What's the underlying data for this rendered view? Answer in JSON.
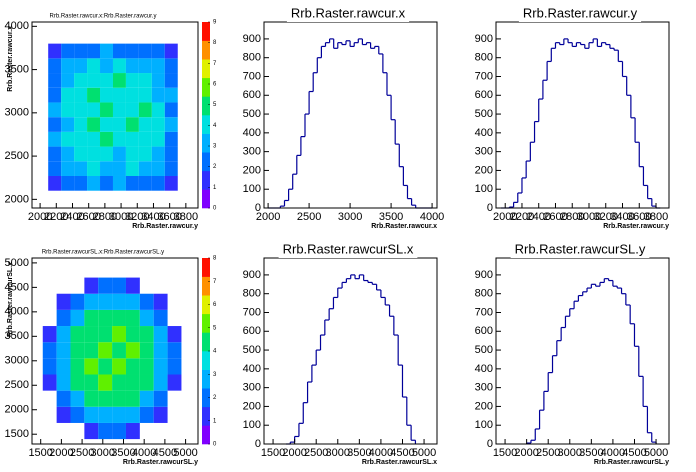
{
  "chart_data": [
    {
      "type": "heatmap",
      "title": "Rrb.Raster.rawcur.x:Rrb.Raster.rawcur.y",
      "xlabel": "Rrb.Raster.rawcur.y",
      "ylabel": "Rrb.Raster.rawcur.x",
      "xlim": [
        1900,
        3950
      ],
      "ylim": [
        1900,
        4050
      ],
      "xticks": [
        2000,
        2200,
        2400,
        2600,
        2800,
        3000,
        3200,
        3400,
        3600,
        3800
      ],
      "yticks": [
        2000,
        2500,
        3000,
        3500,
        4000
      ],
      "xbins": [
        2100,
        2260,
        2420,
        2580,
        2740,
        2900,
        3060,
        3220,
        3380,
        3540,
        3700
      ],
      "ybins": [
        2100,
        2270,
        2440,
        2610,
        2780,
        2950,
        3120,
        3290,
        3460,
        3630,
        3800
      ],
      "z": [
        [
          1,
          2,
          2,
          3,
          2,
          3,
          2,
          2,
          2,
          1
        ],
        [
          2,
          3,
          3,
          4,
          3,
          3,
          4,
          3,
          3,
          2
        ],
        [
          2,
          3,
          4,
          4,
          4,
          3,
          4,
          4,
          3,
          2
        ],
        [
          3,
          4,
          4,
          4,
          5,
          4,
          4,
          4,
          4,
          2
        ],
        [
          2,
          3,
          4,
          5,
          4,
          4,
          5,
          4,
          4,
          3
        ],
        [
          3,
          4,
          4,
          4,
          5,
          4,
          4,
          5,
          4,
          2
        ],
        [
          2,
          4,
          4,
          5,
          4,
          4,
          4,
          4,
          3,
          3
        ],
        [
          2,
          3,
          4,
          4,
          4,
          5,
          4,
          4,
          3,
          2
        ],
        [
          2,
          3,
          3,
          4,
          3,
          4,
          3,
          3,
          3,
          2
        ],
        [
          1,
          2,
          2,
          2,
          3,
          2,
          2,
          2,
          2,
          1
        ]
      ],
      "zlim": [
        0,
        9
      ],
      "zticks": [
        0,
        1,
        2,
        3,
        4,
        5,
        6,
        7,
        8,
        9
      ],
      "palette": [
        "#8000ff",
        "#3030ff",
        "#0070ff",
        "#00b0ff",
        "#00e0e0",
        "#00e070",
        "#60f000",
        "#e0f000",
        "#ff9000",
        "#ff1000"
      ]
    },
    {
      "type": "histogram",
      "title": "Rrb.Raster.rawcur.x",
      "xlabel": "Rrb.Raster.rawcur.x",
      "color": "#000099",
      "xlim": [
        1950,
        4060
      ],
      "ylim": [
        0,
        990
      ],
      "xticks": [
        2000,
        2500,
        3000,
        3500,
        4000
      ],
      "yticks": [
        0,
        100,
        200,
        300,
        400,
        500,
        600,
        700,
        800,
        900
      ],
      "bins": [
        2000,
        2050,
        2100,
        2150,
        2200,
        2250,
        2300,
        2350,
        2400,
        2450,
        2500,
        2550,
        2600,
        2650,
        2700,
        2750,
        2800,
        2850,
        2900,
        2950,
        3000,
        3050,
        3100,
        3150,
        3200,
        3250,
        3300,
        3350,
        3400,
        3450,
        3500,
        3550,
        3600,
        3650,
        3700,
        3750,
        3800,
        3850,
        3900,
        3950,
        4000
      ],
      "values": [
        0,
        0,
        0,
        10,
        40,
        100,
        180,
        280,
        380,
        500,
        620,
        720,
        800,
        860,
        880,
        900,
        850,
        880,
        870,
        890,
        860,
        880,
        900,
        870,
        880,
        850,
        860,
        820,
        720,
        600,
        470,
        340,
        220,
        120,
        50,
        15,
        0,
        0,
        0,
        0
      ]
    },
    {
      "type": "histogram",
      "title": "Rrb.Raster.rawcur.y",
      "xlabel": "Rrb.Raster.rawcur.y",
      "color": "#000099",
      "xlim": [
        1890,
        3955
      ],
      "ylim": [
        0,
        990
      ],
      "xticks": [
        2000,
        2200,
        2400,
        2600,
        2800,
        3000,
        3200,
        3400,
        3600,
        3800
      ],
      "yticks": [
        0,
        100,
        200,
        300,
        400,
        500,
        600,
        700,
        800,
        900
      ],
      "bins": [
        1950,
        2000,
        2050,
        2100,
        2150,
        2200,
        2250,
        2300,
        2350,
        2400,
        2450,
        2500,
        2550,
        2600,
        2650,
        2700,
        2750,
        2800,
        2850,
        2900,
        2950,
        3000,
        3050,
        3100,
        3150,
        3200,
        3250,
        3300,
        3350,
        3400,
        3450,
        3500,
        3550,
        3600,
        3650,
        3700,
        3750,
        3800,
        3850
      ],
      "values": [
        0,
        0,
        5,
        30,
        80,
        160,
        250,
        350,
        460,
        580,
        680,
        780,
        850,
        880,
        870,
        900,
        880,
        860,
        880,
        870,
        850,
        880,
        900,
        860,
        880,
        870,
        850,
        840,
        780,
        700,
        600,
        480,
        350,
        220,
        120,
        50,
        10,
        0
      ]
    },
    {
      "type": "heatmap",
      "title": "Rrb.Raster.rawcurSL.x:Rrb.Raster.rawcurSL.y",
      "xlabel": "Rrb.Raster.rawcurSL.y",
      "ylabel": "Rrb.Raster.rawcurSL.x",
      "xlim": [
        1290,
        5300
      ],
      "ylim": [
        1300,
        5100
      ],
      "xticks": [
        1500,
        2000,
        2500,
        3000,
        3500,
        4000,
        4500,
        5000
      ],
      "yticks": [
        1500,
        2000,
        2500,
        3000,
        3500,
        4000,
        4500,
        5000
      ],
      "xbins": [
        1550,
        1885,
        2220,
        2555,
        2890,
        3225,
        3560,
        3895,
        4230,
        4565,
        4900
      ],
      "ybins": [
        1400,
        1730,
        2060,
        2390,
        2720,
        3050,
        3380,
        3710,
        4040,
        4370,
        4700
      ],
      "z": [
        [
          0,
          0,
          0,
          1,
          2,
          2,
          1,
          0,
          0,
          0
        ],
        [
          0,
          1,
          2,
          3,
          3,
          3,
          3,
          2,
          1,
          0
        ],
        [
          0,
          2,
          3,
          4,
          4,
          4,
          4,
          3,
          2,
          0
        ],
        [
          1,
          3,
          4,
          4,
          5,
          4,
          4,
          4,
          3,
          1
        ],
        [
          2,
          3,
          4,
          5,
          4,
          5,
          4,
          4,
          3,
          2
        ],
        [
          2,
          3,
          4,
          4,
          5,
          4,
          5,
          4,
          3,
          2
        ],
        [
          1,
          3,
          4,
          4,
          4,
          5,
          4,
          4,
          3,
          1
        ],
        [
          0,
          2,
          3,
          4,
          4,
          4,
          4,
          3,
          2,
          0
        ],
        [
          0,
          1,
          2,
          3,
          3,
          3,
          3,
          2,
          1,
          0
        ],
        [
          0,
          0,
          0,
          1,
          2,
          2,
          1,
          0,
          0,
          0
        ]
      ],
      "zlim": [
        0,
        8
      ],
      "zticks": [
        0,
        1,
        2,
        3,
        4,
        5,
        6,
        7,
        8
      ],
      "palette": [
        "#8000ff",
        "#3030ff",
        "#0070ff",
        "#00b0ff",
        "#00e0e0",
        "#00e070",
        "#60f000",
        "#e0f000",
        "#ff9000",
        "#ff1000"
      ]
    },
    {
      "type": "histogram",
      "title": "Rrb.Raster.rawcurSL.x",
      "xlabel": "Rrb.Raster.rawcurSL.x",
      "color": "#000099",
      "xlim": [
        1290,
        5300
      ],
      "ylim": [
        0,
        990
      ],
      "xticks": [
        1500,
        2000,
        2500,
        3000,
        3500,
        4000,
        4500,
        5000
      ],
      "yticks": [
        0,
        100,
        200,
        300,
        400,
        500,
        600,
        700,
        800,
        900
      ],
      "bins": [
        1800,
        1900,
        2000,
        2100,
        2200,
        2300,
        2400,
        2500,
        2600,
        2700,
        2800,
        2900,
        3000,
        3100,
        3200,
        3300,
        3400,
        3500,
        3600,
        3700,
        3800,
        3900,
        4000,
        4100,
        4200,
        4300,
        4400,
        4500,
        4600,
        4700,
        4800
      ],
      "values": [
        0,
        10,
        40,
        110,
        220,
        330,
        420,
        500,
        580,
        660,
        720,
        780,
        830,
        860,
        880,
        900,
        880,
        900,
        870,
        860,
        850,
        820,
        780,
        740,
        680,
        580,
        420,
        250,
        100,
        20
      ]
    },
    {
      "type": "histogram",
      "title": "Rrb.Raster.rawcurSL.y",
      "xlabel": "Rrb.Raster.rawcurSL.y",
      "color": "#000099",
      "xlim": [
        1290,
        5300
      ],
      "ylim": [
        0,
        990
      ],
      "xticks": [
        1500,
        2000,
        2500,
        3000,
        3500,
        4000,
        4500,
        5000
      ],
      "yticks": [
        0,
        100,
        200,
        300,
        400,
        500,
        600,
        700,
        800,
        900
      ],
      "bins": [
        2000,
        2100,
        2200,
        2300,
        2400,
        2500,
        2600,
        2700,
        2800,
        2900,
        3000,
        3100,
        3200,
        3300,
        3400,
        3500,
        3600,
        3700,
        3800,
        3900,
        4000,
        4100,
        4200,
        4300,
        4400,
        4500,
        4600,
        4700,
        4800,
        4900,
        5000
      ],
      "values": [
        5,
        20,
        80,
        180,
        280,
        380,
        470,
        550,
        620,
        680,
        720,
        760,
        790,
        810,
        830,
        850,
        840,
        860,
        880,
        870,
        840,
        830,
        800,
        740,
        640,
        520,
        360,
        200,
        60,
        10
      ]
    }
  ]
}
